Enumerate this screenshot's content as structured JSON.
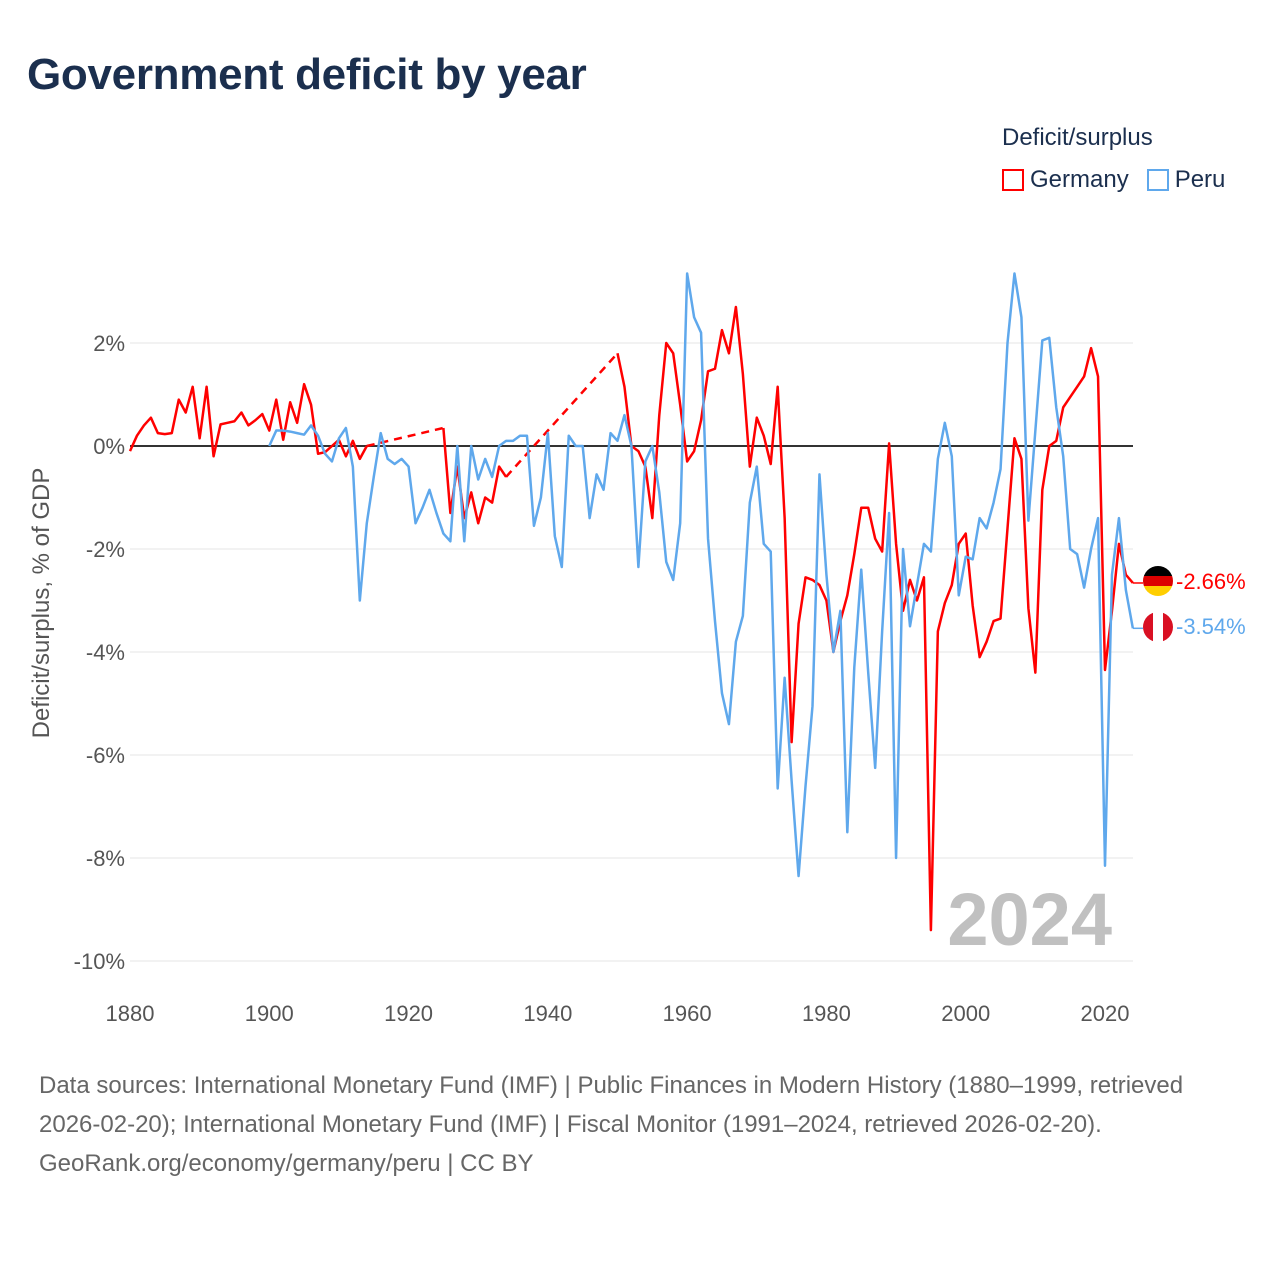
{
  "title": "Government deficit by year",
  "legend": {
    "title": "Deficit/surplus",
    "items": [
      {
        "label": "Germany",
        "color": "#ff0000"
      },
      {
        "label": "Peru",
        "color": "#5fa8ec"
      }
    ]
  },
  "current_year_label": "2024",
  "end_labels": {
    "germany": "-2.66%",
    "peru": "-3.54%"
  },
  "footer": {
    "sources": "Data sources: International Monetary Fund (IMF) | Public Finances in Modern History (1880–1999, retrieved 2026-02-20); International Monetary Fund (IMF) | Fiscal Monitor (1991–2024, retrieved 2026-02-20).",
    "credit": "GeoRank.org/economy/germany/peru | CC BY"
  },
  "chart_data": {
    "type": "line",
    "title": "Government deficit by year",
    "xlabel": "",
    "ylabel": "Deficit/surplus, % of GDP",
    "xlim": [
      1880,
      2024
    ],
    "ylim": [
      -10,
      3.5
    ],
    "x_ticks": [
      1880,
      1900,
      1920,
      1940,
      1960,
      1980,
      2000,
      2020
    ],
    "x_tick_labels": [
      "1880",
      "1900",
      "1920",
      "1940",
      "1960",
      "1980",
      "2000",
      "2020"
    ],
    "y_ticks": [
      2,
      0,
      -2,
      -4,
      -6,
      -8,
      -10
    ],
    "y_tick_labels": [
      "2%",
      "0%",
      "-2%",
      "-4%",
      "-6%",
      "-8%",
      "-10%"
    ],
    "grid": true,
    "legend_position": "top-right",
    "series": [
      {
        "name": "Germany",
        "color": "#ff0000",
        "points": [
          [
            1880,
            -0.1
          ],
          [
            1881,
            0.2
          ],
          [
            1882,
            0.4
          ],
          [
            1883,
            0.55
          ],
          [
            1884,
            0.25
          ],
          [
            1885,
            0.23
          ],
          [
            1886,
            0.25
          ],
          [
            1887,
            0.9
          ],
          [
            1888,
            0.65
          ],
          [
            1889,
            1.15
          ],
          [
            1890,
            0.15
          ],
          [
            1891,
            1.15
          ],
          [
            1892,
            -0.2
          ],
          [
            1893,
            0.42
          ],
          [
            1894,
            0.45
          ],
          [
            1895,
            0.48
          ],
          [
            1896,
            0.65
          ],
          [
            1897,
            0.4
          ],
          [
            1898,
            0.5
          ],
          [
            1899,
            0.62
          ],
          [
            1900,
            0.3
          ],
          [
            1901,
            0.9
          ],
          [
            1902,
            0.12
          ],
          [
            1903,
            0.85
          ],
          [
            1904,
            0.45
          ],
          [
            1905,
            1.2
          ],
          [
            1906,
            0.8
          ],
          [
            1907,
            -0.15
          ],
          [
            1908,
            -0.12
          ],
          [
            1909,
            0.0
          ],
          [
            1910,
            0.12
          ],
          [
            1911,
            -0.2
          ],
          [
            1912,
            0.1
          ],
          [
            1913,
            -0.25
          ],
          [
            1914,
            0.0
          ],
          [
            1925,
            0.35
          ],
          [
            1926,
            -1.3
          ],
          [
            1927,
            -0.4
          ],
          [
            1928,
            -1.4
          ],
          [
            1929,
            -0.9
          ],
          [
            1930,
            -1.5
          ],
          [
            1931,
            -1.0
          ],
          [
            1932,
            -1.1
          ],
          [
            1933,
            -0.4
          ],
          [
            1934,
            -0.6
          ],
          [
            1950,
            1.8
          ],
          [
            1951,
            1.15
          ],
          [
            1952,
            0.0
          ],
          [
            1953,
            -0.1
          ],
          [
            1954,
            -0.4
          ],
          [
            1955,
            -1.4
          ],
          [
            1956,
            0.6
          ],
          [
            1957,
            2.0
          ],
          [
            1958,
            1.8
          ],
          [
            1959,
            0.8
          ],
          [
            1960,
            -0.3
          ],
          [
            1961,
            -0.1
          ],
          [
            1962,
            0.5
          ],
          [
            1963,
            1.45
          ],
          [
            1964,
            1.5
          ],
          [
            1965,
            2.25
          ],
          [
            1966,
            1.8
          ],
          [
            1967,
            2.7
          ],
          [
            1968,
            1.4
          ],
          [
            1969,
            -0.4
          ],
          [
            1970,
            0.55
          ],
          [
            1971,
            0.2
          ],
          [
            1972,
            -0.35
          ],
          [
            1973,
            1.15
          ],
          [
            1974,
            -1.4
          ],
          [
            1975,
            -5.75
          ],
          [
            1976,
            -3.45
          ],
          [
            1977,
            -2.55
          ],
          [
            1978,
            -2.6
          ],
          [
            1979,
            -2.7
          ],
          [
            1980,
            -3.0
          ],
          [
            1981,
            -4.0
          ],
          [
            1982,
            -3.4
          ],
          [
            1983,
            -2.9
          ],
          [
            1984,
            -2.1
          ],
          [
            1985,
            -1.2
          ],
          [
            1986,
            -1.2
          ],
          [
            1987,
            -1.8
          ],
          [
            1988,
            -2.05
          ],
          [
            1989,
            0.05
          ],
          [
            1990,
            -1.9
          ],
          [
            1991,
            -3.2
          ],
          [
            1992,
            -2.6
          ],
          [
            1993,
            -3.0
          ],
          [
            1994,
            -2.55
          ],
          [
            1995,
            -9.4
          ],
          [
            1996,
            -3.6
          ],
          [
            1997,
            -3.05
          ],
          [
            1998,
            -2.7
          ],
          [
            1999,
            -1.9
          ],
          [
            2000,
            -1.7
          ],
          [
            2001,
            -3.1
          ],
          [
            2002,
            -4.1
          ],
          [
            2003,
            -3.8
          ],
          [
            2004,
            -3.4
          ],
          [
            2005,
            -3.35
          ],
          [
            2006,
            -1.6
          ],
          [
            2007,
            0.15
          ],
          [
            2008,
            -0.25
          ],
          [
            2009,
            -3.15
          ],
          [
            2010,
            -4.4
          ],
          [
            2011,
            -0.85
          ],
          [
            2012,
            0.0
          ],
          [
            2013,
            0.1
          ],
          [
            2014,
            0.75
          ],
          [
            2015,
            0.95
          ],
          [
            2016,
            1.15
          ],
          [
            2017,
            1.35
          ],
          [
            2018,
            1.9
          ],
          [
            2019,
            1.35
          ],
          [
            2020,
            -4.35
          ],
          [
            2021,
            -3.2
          ],
          [
            2022,
            -1.9
          ],
          [
            2023,
            -2.5
          ],
          [
            2024,
            -2.66
          ]
        ]
      },
      {
        "name": "Peru",
        "color": "#5fa8ec",
        "points": [
          [
            1900,
            0.0
          ],
          [
            1901,
            0.3
          ],
          [
            1902,
            0.3
          ],
          [
            1903,
            0.28
          ],
          [
            1904,
            0.25
          ],
          [
            1905,
            0.22
          ],
          [
            1906,
            0.4
          ],
          [
            1907,
            0.2
          ],
          [
            1908,
            -0.15
          ],
          [
            1909,
            -0.3
          ],
          [
            1910,
            0.15
          ],
          [
            1911,
            0.35
          ],
          [
            1912,
            -0.4
          ],
          [
            1913,
            -3.0
          ],
          [
            1914,
            -1.5
          ],
          [
            1915,
            -0.6
          ],
          [
            1916,
            0.25
          ],
          [
            1917,
            -0.25
          ],
          [
            1918,
            -0.35
          ],
          [
            1919,
            -0.25
          ],
          [
            1920,
            -0.4
          ],
          [
            1921,
            -1.5
          ],
          [
            1922,
            -1.2
          ],
          [
            1923,
            -0.85
          ],
          [
            1924,
            -1.3
          ],
          [
            1925,
            -1.7
          ],
          [
            1926,
            -1.85
          ],
          [
            1927,
            0.0
          ],
          [
            1928,
            -1.85
          ],
          [
            1929,
            0.0
          ],
          [
            1930,
            -0.65
          ],
          [
            1931,
            -0.25
          ],
          [
            1932,
            -0.6
          ],
          [
            1933,
            0.0
          ],
          [
            1934,
            0.1
          ],
          [
            1935,
            0.1
          ],
          [
            1936,
            0.2
          ],
          [
            1937,
            0.2
          ],
          [
            1938,
            -1.55
          ],
          [
            1939,
            -1.0
          ],
          [
            1940,
            0.25
          ],
          [
            1941,
            -1.75
          ],
          [
            1942,
            -2.35
          ],
          [
            1943,
            0.2
          ],
          [
            1944,
            0.0
          ],
          [
            1945,
            0.0
          ],
          [
            1946,
            -1.4
          ],
          [
            1947,
            -0.55
          ],
          [
            1948,
            -0.85
          ],
          [
            1949,
            0.25
          ],
          [
            1950,
            0.1
          ],
          [
            1951,
            0.6
          ],
          [
            1952,
            0.0
          ],
          [
            1953,
            -2.35
          ],
          [
            1954,
            -0.3
          ],
          [
            1955,
            0.0
          ],
          [
            1956,
            -0.9
          ],
          [
            1957,
            -2.25
          ],
          [
            1958,
            -2.6
          ],
          [
            1959,
            -1.5
          ],
          [
            1960,
            3.35
          ],
          [
            1961,
            2.5
          ],
          [
            1962,
            2.2
          ],
          [
            1963,
            -1.8
          ],
          [
            1964,
            -3.4
          ],
          [
            1965,
            -4.8
          ],
          [
            1966,
            -5.4
          ],
          [
            1967,
            -3.8
          ],
          [
            1968,
            -3.3
          ],
          [
            1969,
            -1.1
          ],
          [
            1970,
            -0.4
          ],
          [
            1971,
            -1.9
          ],
          [
            1972,
            -2.05
          ],
          [
            1973,
            -6.65
          ],
          [
            1974,
            -4.5
          ],
          [
            1975,
            -6.5
          ],
          [
            1976,
            -8.35
          ],
          [
            1977,
            -6.6
          ],
          [
            1978,
            -5.05
          ],
          [
            1979,
            -0.55
          ],
          [
            1980,
            -2.5
          ],
          [
            1981,
            -4.0
          ],
          [
            1982,
            -3.2
          ],
          [
            1983,
            -7.5
          ],
          [
            1984,
            -4.3
          ],
          [
            1985,
            -2.4
          ],
          [
            1986,
            -4.4
          ],
          [
            1987,
            -6.25
          ],
          [
            1988,
            -3.6
          ],
          [
            1989,
            -1.3
          ],
          [
            1990,
            -8.0
          ],
          [
            1991,
            -2.0
          ],
          [
            1992,
            -3.5
          ],
          [
            1993,
            -2.7
          ],
          [
            1994,
            -1.9
          ],
          [
            1995,
            -2.05
          ],
          [
            1996,
            -0.25
          ],
          [
            1997,
            0.45
          ],
          [
            1998,
            -0.2
          ],
          [
            1999,
            -2.9
          ],
          [
            2000,
            -2.15
          ],
          [
            2001,
            -2.2
          ],
          [
            2002,
            -1.4
          ],
          [
            2003,
            -1.6
          ],
          [
            2004,
            -1.1
          ],
          [
            2005,
            -0.45
          ],
          [
            2006,
            2.0
          ],
          [
            2007,
            3.35
          ],
          [
            2008,
            2.5
          ],
          [
            2009,
            -1.45
          ],
          [
            2010,
            0.3
          ],
          [
            2011,
            2.05
          ],
          [
            2012,
            2.1
          ],
          [
            2013,
            0.75
          ],
          [
            2014,
            -0.2
          ],
          [
            2015,
            -2.0
          ],
          [
            2016,
            -2.1
          ],
          [
            2017,
            -2.75
          ],
          [
            2018,
            -2.0
          ],
          [
            2019,
            -1.4
          ],
          [
            2020,
            -8.15
          ],
          [
            2021,
            -2.5
          ],
          [
            2022,
            -1.4
          ],
          [
            2023,
            -2.8
          ],
          [
            2024,
            -3.54
          ]
        ]
      }
    ]
  }
}
